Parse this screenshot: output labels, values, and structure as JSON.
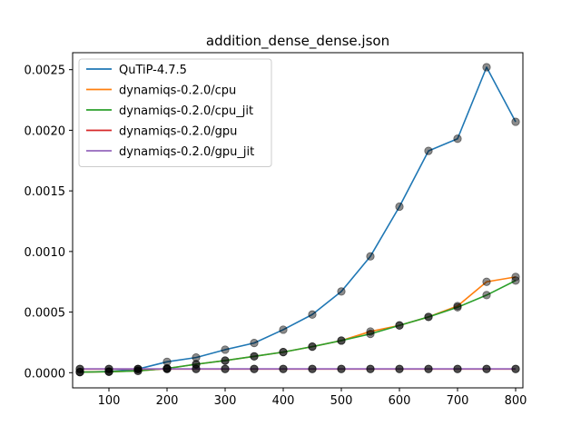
{
  "chart_data": {
    "type": "line",
    "title": "addition_dense_dense.json",
    "xlabel": "",
    "ylabel": "",
    "xlim": [
      37.5,
      812.5
    ],
    "ylim": [
      -0.000125,
      0.00264
    ],
    "x_ticks": [
      100,
      200,
      300,
      400,
      500,
      600,
      700,
      800
    ],
    "x_tick_labels": [
      "100",
      "200",
      "300",
      "400",
      "500",
      "600",
      "700",
      "800"
    ],
    "y_ticks": [
      0.0,
      0.0005,
      0.001,
      0.0015,
      0.002,
      0.0025
    ],
    "y_tick_labels": [
      "0.0000",
      "0.0005",
      "0.0010",
      "0.0015",
      "0.0020",
      "0.0025"
    ],
    "grid": false,
    "legend_position": "top-left",
    "x": [
      50,
      100,
      150,
      200,
      250,
      300,
      350,
      400,
      450,
      500,
      550,
      600,
      650,
      700,
      750,
      800
    ],
    "series": [
      {
        "name": "QuTiP-4.7.5",
        "color": "#1f77b4",
        "values": [
          5e-06,
          1e-05,
          3e-05,
          9e-05,
          0.000125,
          0.00019,
          0.000245,
          0.000355,
          0.00048,
          0.00067,
          0.00096,
          0.00137,
          0.00183,
          0.00193,
          0.00252,
          0.00207
        ]
      },
      {
        "name": "dynamiqs-0.2.0/cpu",
        "color": "#ff7f0e",
        "values": [
          5e-06,
          8e-06,
          1.5e-05,
          3.5e-05,
          7e-05,
          0.0001,
          0.000135,
          0.00017,
          0.000215,
          0.000265,
          0.00034,
          0.00039,
          0.00046,
          0.00055,
          0.00075,
          0.00079
        ]
      },
      {
        "name": "dynamiqs-0.2.0/cpu_jit",
        "color": "#2ca02c",
        "values": [
          5e-06,
          8e-06,
          1.5e-05,
          3.5e-05,
          7e-05,
          0.0001,
          0.000135,
          0.00017,
          0.000215,
          0.000265,
          0.00032,
          0.00039,
          0.00046,
          0.00054,
          0.00064,
          0.00076
        ]
      },
      {
        "name": "dynamiqs-0.2.0/gpu",
        "color": "#d62728",
        "values": [
          3e-05,
          3e-05,
          3e-05,
          3e-05,
          3e-05,
          3e-05,
          3e-05,
          3e-05,
          3e-05,
          3e-05,
          3e-05,
          3e-05,
          3e-05,
          3e-05,
          3e-05,
          3e-05
        ]
      },
      {
        "name": "dynamiqs-0.2.0/gpu_jit",
        "color": "#9467bd",
        "values": [
          3.2e-05,
          3.2e-05,
          3.2e-05,
          3.2e-05,
          3.2e-05,
          3.2e-05,
          3.2e-05,
          3.2e-05,
          3.2e-05,
          3.2e-05,
          3.2e-05,
          3.2e-05,
          3.2e-05,
          3.2e-05,
          3.2e-05,
          3.2e-05
        ]
      }
    ],
    "marker_color": "#000000"
  }
}
